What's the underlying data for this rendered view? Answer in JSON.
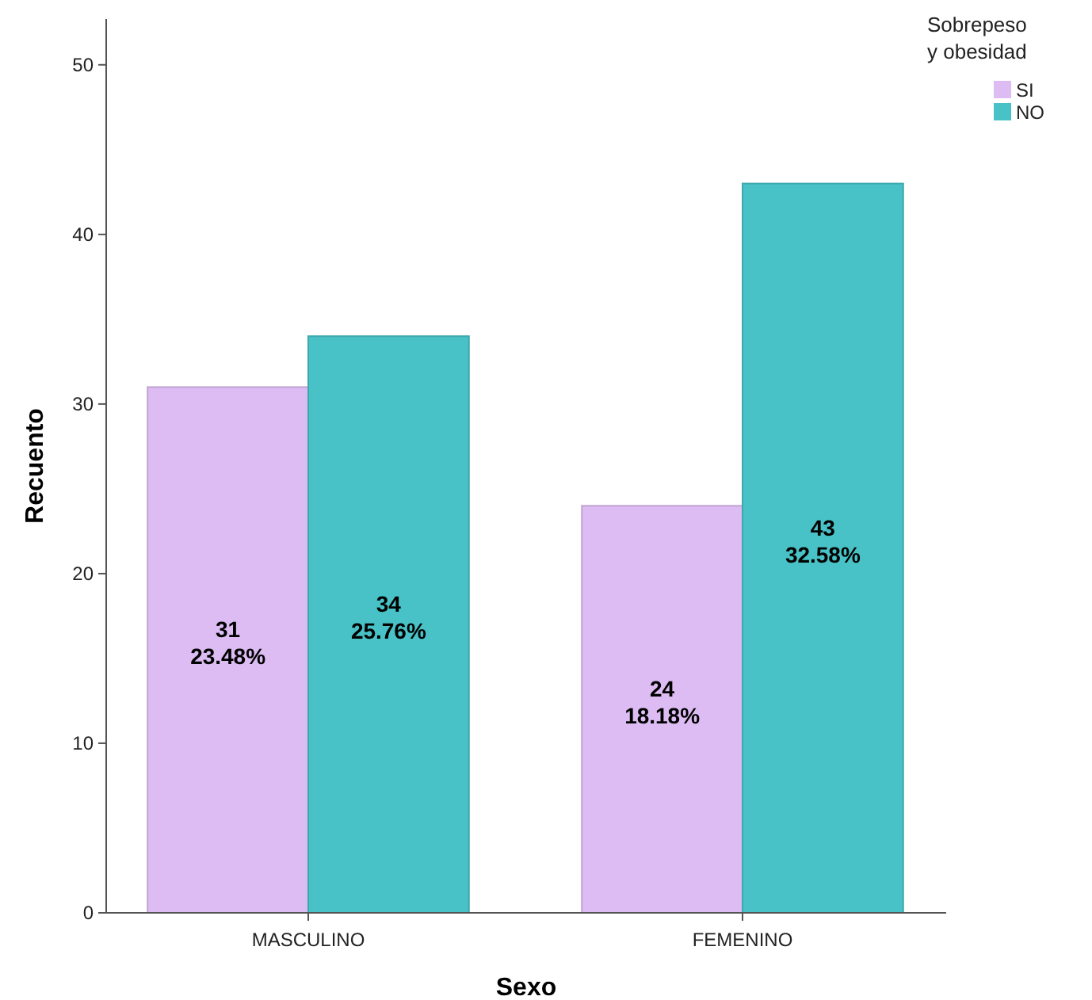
{
  "chart_data": {
    "type": "bar",
    "xlabel": "Sexo",
    "ylabel": "Recuento",
    "legend_title": "Sobrepeso\ny obesidad",
    "categories": [
      "MASCULINO",
      "FEMENINO"
    ],
    "series": [
      {
        "name": "SI",
        "color": "#dcbcf2",
        "values": [
          31,
          24
        ],
        "value_labels": [
          "31\n23.48%",
          "24\n18.18%"
        ]
      },
      {
        "name": "NO",
        "color": "#48c2c6",
        "values": [
          34,
          43
        ],
        "value_labels": [
          "34\n25.76%",
          "43\n32.58%"
        ]
      }
    ],
    "ylim": [
      0,
      52.7
    ],
    "yticks": [
      0,
      10,
      20,
      30,
      40,
      50
    ],
    "legend": "top right",
    "grid": false
  }
}
